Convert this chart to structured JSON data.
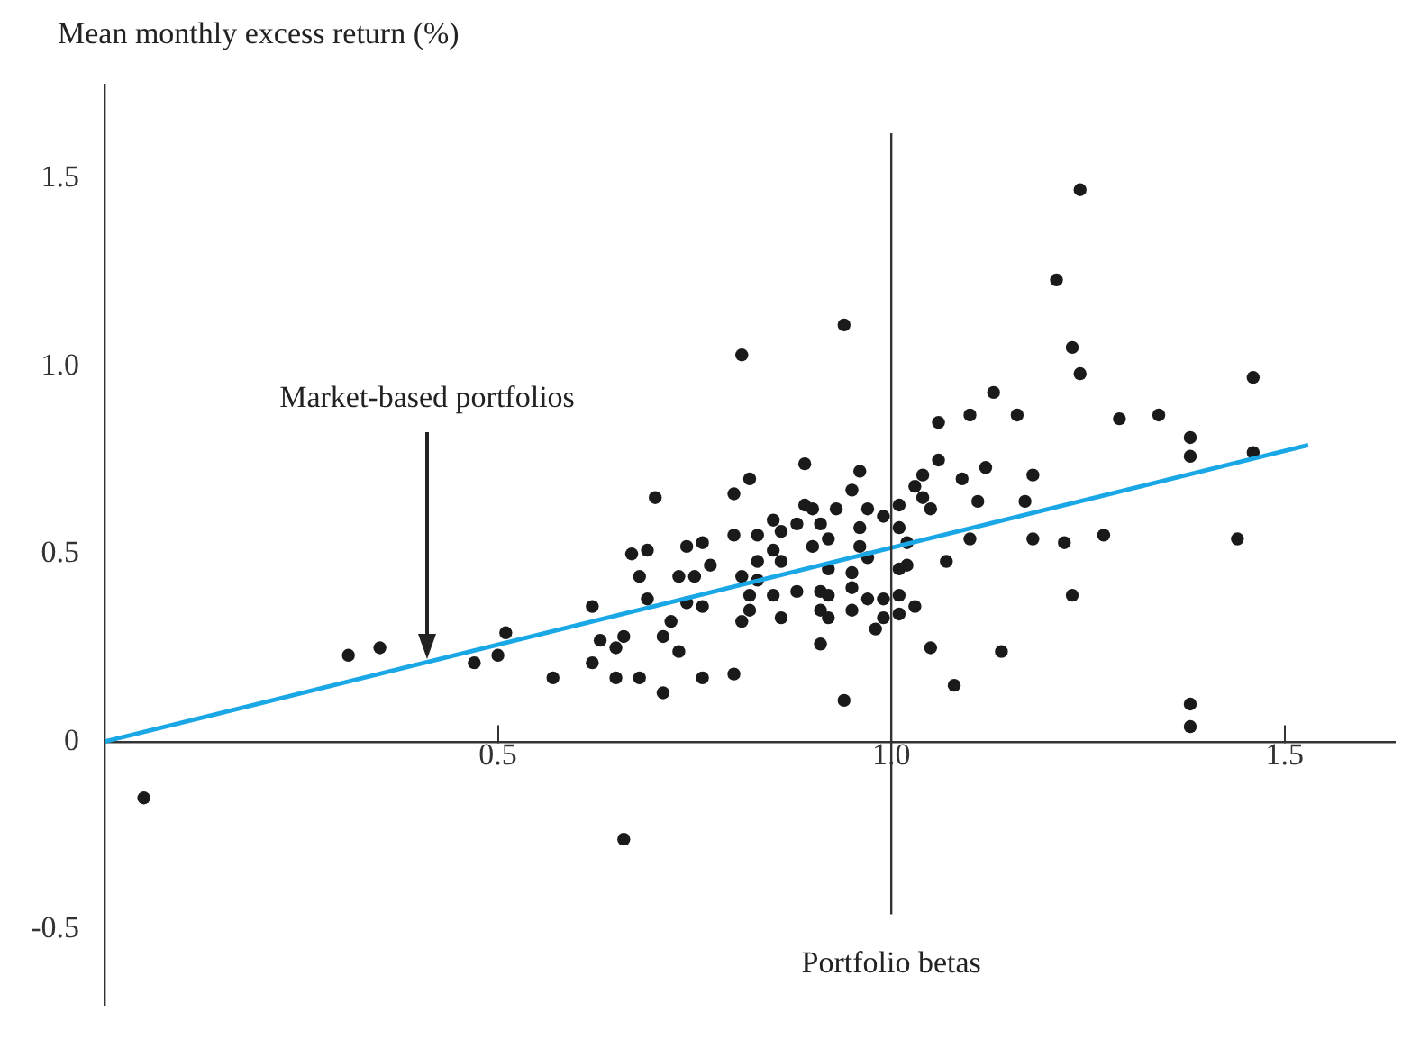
{
  "chart_data": {
    "type": "scatter",
    "xlabel": "Portfolio betas",
    "ylabel": "Mean monthly excess return (%)",
    "xlim": [
      0,
      1.64
    ],
    "xticks": [
      0.5,
      {
        "value": 1,
        "label": "1.0"
      },
      1.5
    ],
    "ylim": [
      -0.7,
      1.75
    ],
    "yticks": [
      -0.5,
      0,
      0.5,
      {
        "value": 1,
        "label": "1.0"
      },
      1.5
    ],
    "grid": false,
    "legend": false,
    "marker": "circle",
    "annotations": [
      {
        "text": "Market-based portfolios",
        "x": 0.41,
        "y": 0.22
      }
    ],
    "ref_lines": [
      {
        "axis": "x",
        "value": 1,
        "color": "#333333"
      }
    ],
    "series": [
      {
        "color": "#1a1a1a",
        "x": [
          0.89,
          0.82,
          0.8,
          0.7,
          0.96,
          0.95,
          0.89,
          0.9,
          0.93,
          0.97,
          1.01,
          0.99,
          0.85,
          0.88,
          0.91,
          0.96,
          0.86,
          0.8,
          0.83,
          0.92,
          0.76,
          0.74,
          0.85,
          0.9,
          0.96,
          0.69,
          0.67,
          0.83,
          0.86,
          0.97,
          0.77,
          0.68,
          0.73,
          0.75,
          0.81,
          0.83,
          0.92,
          0.95,
          1.01,
          1.02,
          0.69,
          0.74,
          0.76,
          0.62,
          0.82,
          0.85,
          0.88,
          0.91,
          0.92,
          0.95,
          0.97,
          0.95,
          0.99,
          1.01,
          1.03,
          1.01,
          0.82,
          0.81,
          0.86,
          0.91,
          0.92,
          0.99,
          0.98,
          0.72,
          0.66,
          0.63,
          0.65,
          0.71,
          0.73,
          0.62,
          0.91,
          1.05,
          0.57,
          0.65,
          0.68,
          0.76,
          0.8,
          0.71,
          0.94,
          1.24,
          1.21,
          1.23,
          1.24,
          1.46,
          1.13,
          1.06,
          1.1,
          1.16,
          1.29,
          1.34,
          1.38,
          1.38,
          1.46,
          1.06,
          1.04,
          1.03,
          1.09,
          1.12,
          1.18,
          1.04,
          1.05,
          1.11,
          1.17,
          1.01,
          1.02,
          1.1,
          1.18,
          1.22,
          1.27,
          1.44,
          1.07,
          1.14,
          1.23,
          1.08,
          1.38,
          1.38,
          0.05,
          0.31,
          0.35,
          0.47,
          0.5,
          0.51,
          0.66,
          0.81,
          0.94
        ],
        "values": [
          0.74,
          0.7,
          0.66,
          0.65,
          0.72,
          0.67,
          0.63,
          0.62,
          0.62,
          0.62,
          0.63,
          0.6,
          0.59,
          0.58,
          0.58,
          0.57,
          0.56,
          0.55,
          0.55,
          0.54,
          0.53,
          0.52,
          0.51,
          0.52,
          0.52,
          0.51,
          0.5,
          0.48,
          0.48,
          0.49,
          0.47,
          0.44,
          0.44,
          0.44,
          0.44,
          0.43,
          0.46,
          0.45,
          0.46,
          0.47,
          0.38,
          0.37,
          0.36,
          0.36,
          0.39,
          0.39,
          0.4,
          0.4,
          0.39,
          0.41,
          0.38,
          0.35,
          0.38,
          0.39,
          0.36,
          0.34,
          0.35,
          0.32,
          0.33,
          0.35,
          0.33,
          0.33,
          0.3,
          0.32,
          0.28,
          0.27,
          0.25,
          0.28,
          0.24,
          0.21,
          0.26,
          0.25,
          0.17,
          0.17,
          0.17,
          0.17,
          0.18,
          0.13,
          0.11,
          1.47,
          1.23,
          1.05,
          0.98,
          0.97,
          0.93,
          0.85,
          0.87,
          0.87,
          0.86,
          0.87,
          0.81,
          0.76,
          0.77,
          0.75,
          0.71,
          0.68,
          0.7,
          0.73,
          0.71,
          0.65,
          0.62,
          0.64,
          0.64,
          0.57,
          0.53,
          0.54,
          0.54,
          0.53,
          0.55,
          0.54,
          0.48,
          0.24,
          0.39,
          0.15,
          0.1,
          0.04,
          -0.15,
          0.23,
          0.25,
          0.21,
          0.23,
          0.29,
          -0.26,
          1.03,
          1.11
        ]
      },
      {
        "type": "line",
        "color": "#1aa7e6",
        "marker": "none",
        "x": [
          0,
          1.53
        ],
        "values": [
          0,
          0.79
        ]
      }
    ]
  }
}
